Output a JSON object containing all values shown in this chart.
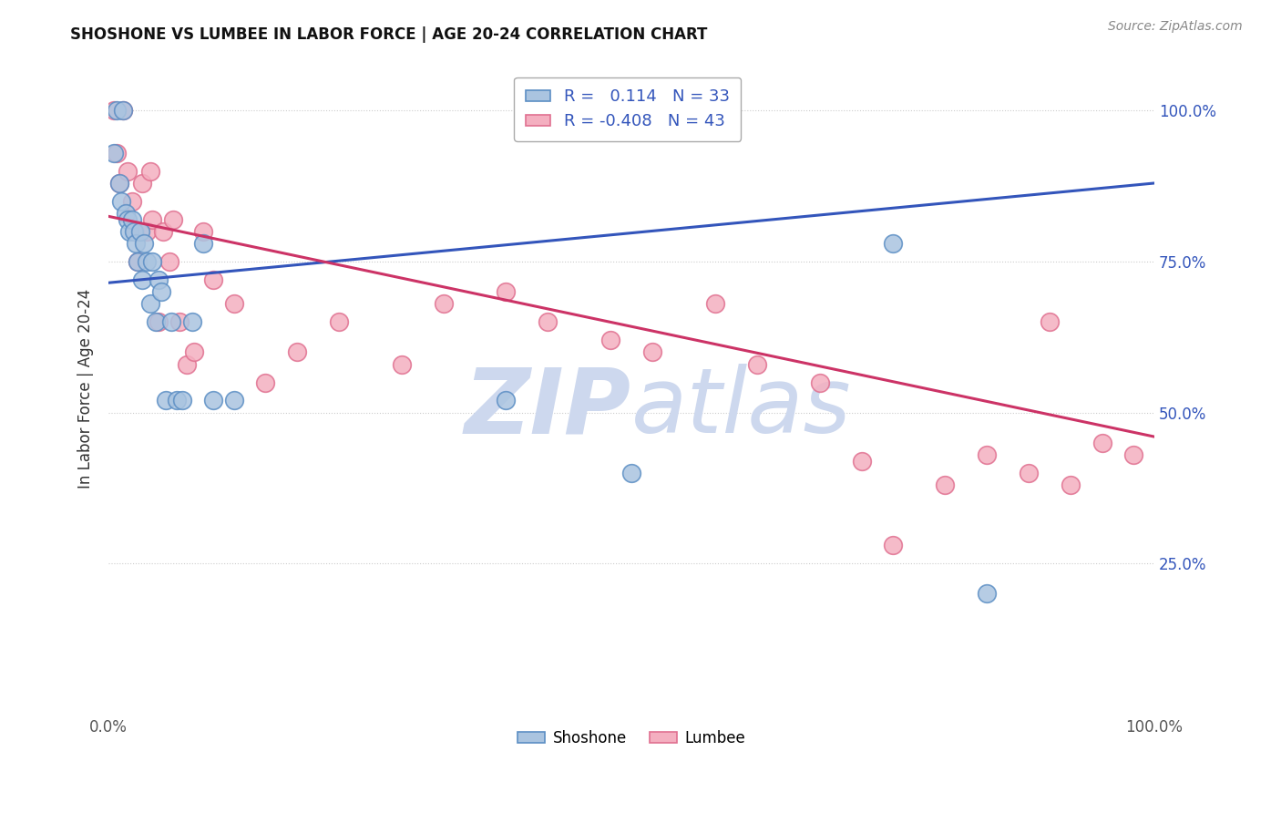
{
  "title": "SHOSHONE VS LUMBEE IN LABOR FORCE | AGE 20-24 CORRELATION CHART",
  "source": "Source: ZipAtlas.com",
  "ylabel": "In Labor Force | Age 20-24",
  "legend_shoshone_r": "0.114",
  "legend_shoshone_n": "33",
  "legend_lumbee_r": "-0.408",
  "legend_lumbee_n": "43",
  "shoshone_color": "#aac4e0",
  "lumbee_color": "#f4afc0",
  "shoshone_edge": "#5b8ec4",
  "lumbee_edge": "#e07090",
  "trend_shoshone_color": "#3355bb",
  "trend_lumbee_color": "#cc3366",
  "watermark_color": "#cdd8ee",
  "shoshone_x": [
    0.005,
    0.008,
    0.01,
    0.012,
    0.014,
    0.016,
    0.018,
    0.02,
    0.022,
    0.024,
    0.026,
    0.028,
    0.03,
    0.032,
    0.034,
    0.036,
    0.04,
    0.042,
    0.045,
    0.048,
    0.05,
    0.055,
    0.06,
    0.065,
    0.07,
    0.08,
    0.09,
    0.1,
    0.12,
    0.38,
    0.5,
    0.75,
    0.84
  ],
  "shoshone_y": [
    0.93,
    1.0,
    0.88,
    0.85,
    1.0,
    0.83,
    0.82,
    0.8,
    0.82,
    0.8,
    0.78,
    0.75,
    0.8,
    0.72,
    0.78,
    0.75,
    0.68,
    0.75,
    0.65,
    0.72,
    0.7,
    0.52,
    0.65,
    0.52,
    0.52,
    0.65,
    0.78,
    0.52,
    0.52,
    0.52,
    0.4,
    0.78,
    0.2
  ],
  "lumbee_x": [
    0.005,
    0.008,
    0.01,
    0.014,
    0.018,
    0.022,
    0.025,
    0.028,
    0.032,
    0.036,
    0.04,
    0.042,
    0.048,
    0.052,
    0.058,
    0.062,
    0.068,
    0.075,
    0.082,
    0.09,
    0.1,
    0.12,
    0.15,
    0.18,
    0.22,
    0.28,
    0.32,
    0.38,
    0.42,
    0.48,
    0.52,
    0.58,
    0.62,
    0.68,
    0.72,
    0.75,
    0.8,
    0.84,
    0.88,
    0.9,
    0.92,
    0.95,
    0.98
  ],
  "lumbee_y": [
    1.0,
    0.93,
    0.88,
    1.0,
    0.9,
    0.85,
    0.8,
    0.75,
    0.88,
    0.8,
    0.9,
    0.82,
    0.65,
    0.8,
    0.75,
    0.82,
    0.65,
    0.58,
    0.6,
    0.8,
    0.72,
    0.68,
    0.55,
    0.6,
    0.65,
    0.58,
    0.68,
    0.7,
    0.65,
    0.62,
    0.6,
    0.68,
    0.58,
    0.55,
    0.42,
    0.28,
    0.38,
    0.43,
    0.4,
    0.65,
    0.38,
    0.45,
    0.43
  ],
  "xlim": [
    0.0,
    1.0
  ],
  "ylim": [
    0.0,
    1.08
  ],
  "background_color": "#ffffff",
  "grid_color": "#cccccc",
  "right_tick_color": "#3355bb"
}
